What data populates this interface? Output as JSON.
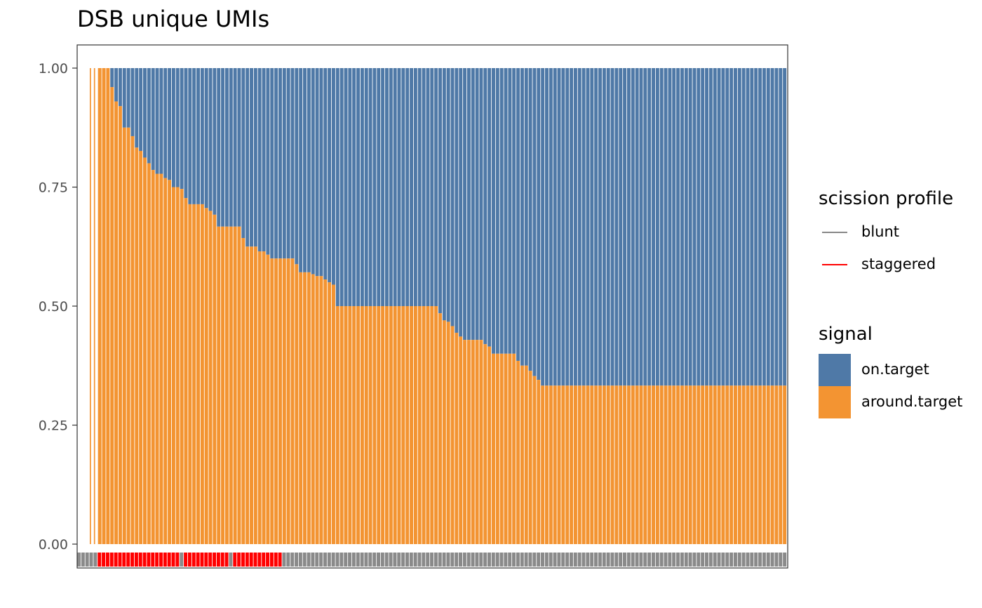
{
  "chart_data": {
    "type": "bar",
    "title": "DSB unique UMIs",
    "xlabel": "",
    "ylabel": "",
    "ylim": [
      0,
      1
    ],
    "y_ticks": [
      "0.00",
      "0.25",
      "0.50",
      "0.75",
      "1.00"
    ],
    "stacked": true,
    "n_bars": 170,
    "series": [
      {
        "name": "around.target",
        "color": "#f39432"
      },
      {
        "name": "on.target",
        "color": "#4f79a7"
      }
    ],
    "around_target_fraction": [
      1,
      1,
      1,
      1,
      1,
      0.96,
      0.93,
      0.92,
      0.875,
      0.875,
      0.857,
      0.833,
      0.826,
      0.812,
      0.8,
      0.786,
      0.778,
      0.778,
      0.769,
      0.765,
      0.75,
      0.75,
      0.746,
      0.727,
      0.714,
      0.714,
      0.714,
      0.714,
      0.706,
      0.7,
      0.692,
      0.667,
      0.667,
      0.667,
      0.667,
      0.667,
      0.667,
      0.643,
      0.625,
      0.625,
      0.625,
      0.615,
      0.615,
      0.608,
      0.6,
      0.6,
      0.6,
      0.6,
      0.6,
      0.6,
      0.588,
      0.571,
      0.571,
      0.571,
      0.567,
      0.563,
      0.563,
      0.556,
      0.55,
      0.545,
      0.5,
      0.5,
      0.5,
      0.5,
      0.5,
      0.5,
      0.5,
      0.5,
      0.5,
      0.5,
      0.5,
      0.5,
      0.5,
      0.5,
      0.5,
      0.5,
      0.5,
      0.5,
      0.5,
      0.5,
      0.5,
      0.5,
      0.5,
      0.5,
      0.5,
      0.485,
      0.47,
      0.467,
      0.458,
      0.444,
      0.436,
      0.429,
      0.429,
      0.429,
      0.429,
      0.429,
      0.42,
      0.415,
      0.4,
      0.4,
      0.4,
      0.4,
      0.4,
      0.4,
      0.385,
      0.375,
      0.375,
      0.364,
      0.353,
      0.345,
      0.333,
      0.333,
      0.333,
      0.333,
      0.333,
      0.333,
      0.333,
      0.333,
      0.333,
      0.333,
      0.333,
      0.333,
      0.333,
      0.333,
      0.333,
      0.333,
      0.333,
      0.333,
      0.333,
      0.333,
      0.333,
      0.333,
      0.333,
      0.333,
      0.333,
      0.333,
      0.333,
      0.333,
      0.333,
      0.333,
      0.333,
      0.333,
      0.333,
      0.333,
      0.333,
      0.333,
      0.333,
      0.333,
      0.333,
      0.333,
      0.333,
      0.333,
      0.333,
      0.333,
      0.333,
      0.333,
      0.333,
      0.333,
      0.333,
      0.333,
      0.333,
      0.333,
      0.333,
      0.333,
      0.333,
      0.333,
      0.333,
      0.333,
      0.333,
      0.333
    ],
    "bar_present": "bars 1-2 are empty/white (no data), rest populated",
    "scission_profile": {
      "staggered_ranges": [
        [
          5,
          25
        ],
        [
          26,
          37
        ],
        [
          38,
          50
        ]
      ],
      "default": "blunt"
    },
    "legends": [
      {
        "title": "scission profile",
        "items": [
          {
            "label": "blunt",
            "color": "#888888"
          },
          {
            "label": "staggered",
            "color": "#ff0000"
          }
        ]
      },
      {
        "title": "signal",
        "items": [
          {
            "label": "on.target",
            "color": "#4f79a7"
          },
          {
            "label": "around.target",
            "color": "#f39432"
          }
        ]
      }
    ]
  }
}
